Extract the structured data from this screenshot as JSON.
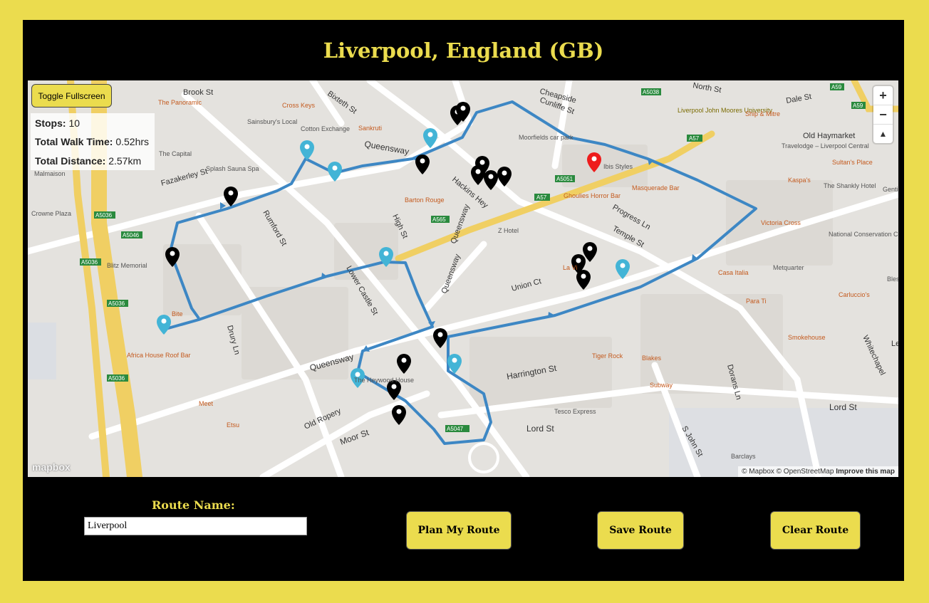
{
  "header": {
    "title": "Liverpool, England (GB)"
  },
  "map": {
    "toggle_fullscreen_label": "Toggle Fullscreen",
    "stats": {
      "stops_label": "Stops:",
      "stops_value": "10",
      "walk_time_label": "Total Walk Time:",
      "walk_time_value": "0.52hrs",
      "distance_label": "Total Distance:",
      "distance_value": "2.57km"
    },
    "zoom": {
      "in": "+",
      "out": "−",
      "compass": "▲"
    },
    "attribution": {
      "text": "© Mapbox © OpenStreetMap",
      "improve": "Improve this map"
    },
    "logo": "mapbox",
    "colors": {
      "route": "#3d87c4",
      "selected_pin": "#ee1c1c",
      "stop_pin": "#43b4d6",
      "poi_pin": "#000000",
      "major_road": "#f0cf63"
    },
    "labels": {
      "streets": [
        "Brook St",
        "Bixteth St",
        "Cheapside",
        "Cunliffe St",
        "Dale St",
        "North St",
        "Queensway",
        "Fazakerley St",
        "Rumford St",
        "High St",
        "Hackins Hey",
        "Progress Ln",
        "Temple St",
        "Union Ct",
        "Lower Castle St",
        "Drury Ln",
        "Queensway",
        "Queensway",
        "Harrington St",
        "Old Ropery",
        "Moor St",
        "Lord St",
        "Lord St",
        "S John St",
        "Dorans Ln",
        "Whitechapel",
        "Old Haymarket",
        "Leigh",
        "Queensway"
      ],
      "places": [
        "The Panoramic",
        "Cross Keys",
        "Sainsbury's Local",
        "Cotton Exchange",
        "Sankruti",
        "The Capital",
        "Splash Sauna Spa",
        "Malmaison",
        "Crowne Plaza",
        "Blitz Memorial",
        "Bite",
        "Africa House Roof Bar",
        "Meet",
        "Etsu",
        "Barton Rouge",
        "Moorfields car park",
        "Liverpool John Moores University",
        "Ship & Mitre",
        "Travelodge – Liverpool Central",
        "Sultan's Place",
        "Ibis Styles",
        "Ghoulies Horror Bar",
        "Masquerade Bar",
        "Kaspa's",
        "The Shankly Hotel",
        "National Conservation Centre",
        "Victoria Cross",
        "Z Hotel",
        "La Vi",
        "Casa Italia",
        "Metquarter",
        "Para Ti",
        "Carluccio's",
        "Smokehouse",
        "Tiger Rock",
        "Blakes",
        "Subway",
        "The Heywood House",
        "Tesco Express",
        "Barclays",
        "Genti",
        "Bles"
      ],
      "roads": [
        "A5036",
        "A5046",
        "A5036",
        "A5036",
        "A5036",
        "A565",
        "A57",
        "A5051",
        "A57",
        "A5038",
        "A59",
        "A59",
        "A5047"
      ]
    }
  },
  "controls": {
    "route_name_label": "Route Name:",
    "route_name_value": "Liverpool",
    "plan_button": "Plan My Route",
    "save_button": "Save Route",
    "clear_button": "Clear Route"
  }
}
